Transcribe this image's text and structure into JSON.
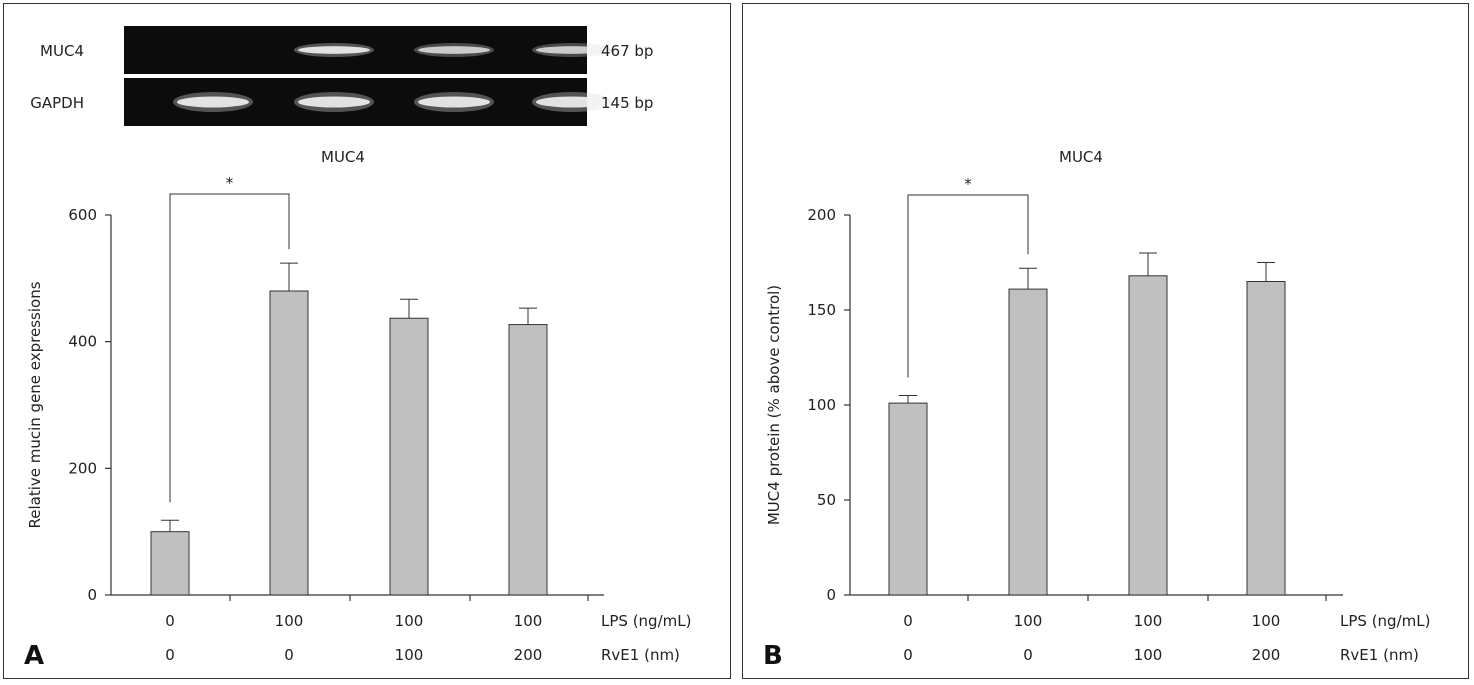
{
  "chart_data": [
    {
      "panel_label": "A",
      "type": "bar",
      "title": "MUC4",
      "ylabel": "Relative mucin gene expressions",
      "ylim": [
        0,
        600
      ],
      "yticks": [
        0,
        200,
        400,
        600
      ],
      "categories_lps": [
        "0",
        "100",
        "100",
        "100"
      ],
      "categories_rve1": [
        "0",
        "0",
        "100",
        "200"
      ],
      "row_labels": {
        "lps": "LPS (ng/mL)",
        "rve1": "RvE1 (nm)"
      },
      "values": [
        100,
        480,
        437,
        427
      ],
      "errors": [
        18,
        44,
        30,
        26
      ],
      "significance": {
        "from": 0,
        "to": 1,
        "symbol": "*"
      },
      "gel": {
        "rows": [
          {
            "name": "MUC4",
            "size": "467 bp",
            "bands": [
              0,
              1,
              0.85,
              0.85
            ]
          },
          {
            "name": "GAPDH",
            "size": "145 bp",
            "bands": [
              1,
              1,
              1,
              1
            ]
          }
        ]
      }
    },
    {
      "panel_label": "B",
      "type": "bar",
      "title": "MUC4",
      "ylabel": "MUC4 protein (% above control)",
      "ylim": [
        0,
        200
      ],
      "yticks": [
        0,
        50,
        100,
        150,
        200
      ],
      "categories_lps": [
        "0",
        "100",
        "100",
        "100"
      ],
      "categories_rve1": [
        "0",
        "0",
        "100",
        "200"
      ],
      "row_labels": {
        "lps": "LPS (ng/mL)",
        "rve1": "RvE1 (nm)"
      },
      "values": [
        101,
        161,
        168,
        165
      ],
      "errors": [
        4,
        11,
        12,
        10
      ],
      "significance": {
        "from": 0,
        "to": 1,
        "symbol": "*"
      }
    }
  ]
}
